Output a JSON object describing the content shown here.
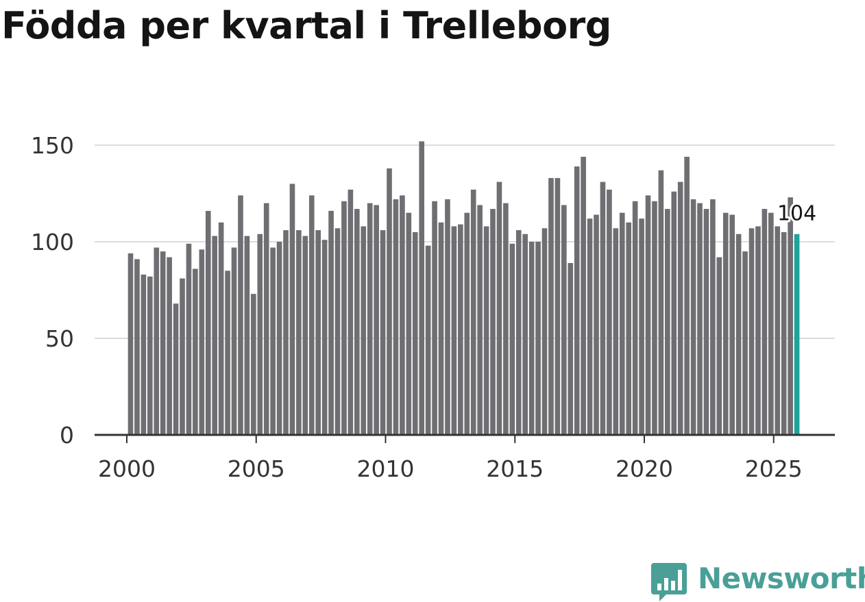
{
  "title": "Födda per kvartal i Trelleborg",
  "brand": {
    "name": "Newsworthy",
    "icon": "newsworthy-logo-icon",
    "color": "#4a9f97"
  },
  "chart_data": {
    "type": "bar",
    "title": "Födda per kvartal i Trelleborg",
    "xlabel": "",
    "ylabel": "",
    "ylim": [
      0,
      150
    ],
    "y_ticks": [
      0,
      50,
      100,
      150
    ],
    "x_ticks": [
      2000,
      2005,
      2010,
      2015,
      2020,
      2025
    ],
    "x_tick_labels": [
      "2000",
      "2005",
      "2010",
      "2015",
      "2020",
      "2025"
    ],
    "grid": true,
    "start_year": 2000,
    "bar_color": "#6f6e73",
    "highlight_color": "#20a39a",
    "highlight_label": "104",
    "values": [
      94,
      91,
      83,
      82,
      97,
      95,
      92,
      68,
      81,
      99,
      86,
      96,
      116,
      103,
      110,
      85,
      97,
      124,
      103,
      73,
      104,
      120,
      97,
      100,
      106,
      130,
      106,
      103,
      124,
      106,
      101,
      116,
      107,
      121,
      127,
      117,
      108,
      120,
      119,
      106,
      138,
      122,
      124,
      115,
      105,
      152,
      98,
      121,
      110,
      122,
      108,
      109,
      115,
      127,
      119,
      108,
      117,
      131,
      120,
      99,
      106,
      104,
      100,
      100,
      107,
      133,
      133,
      119,
      89,
      139,
      144,
      112,
      114,
      131,
      127,
      107,
      115,
      110,
      121,
      112,
      124,
      121,
      137,
      117,
      126,
      131,
      144,
      122,
      120,
      117,
      122,
      92,
      115,
      114,
      104,
      95,
      107,
      108,
      117,
      115,
      108,
      105,
      123,
      104
    ]
  }
}
